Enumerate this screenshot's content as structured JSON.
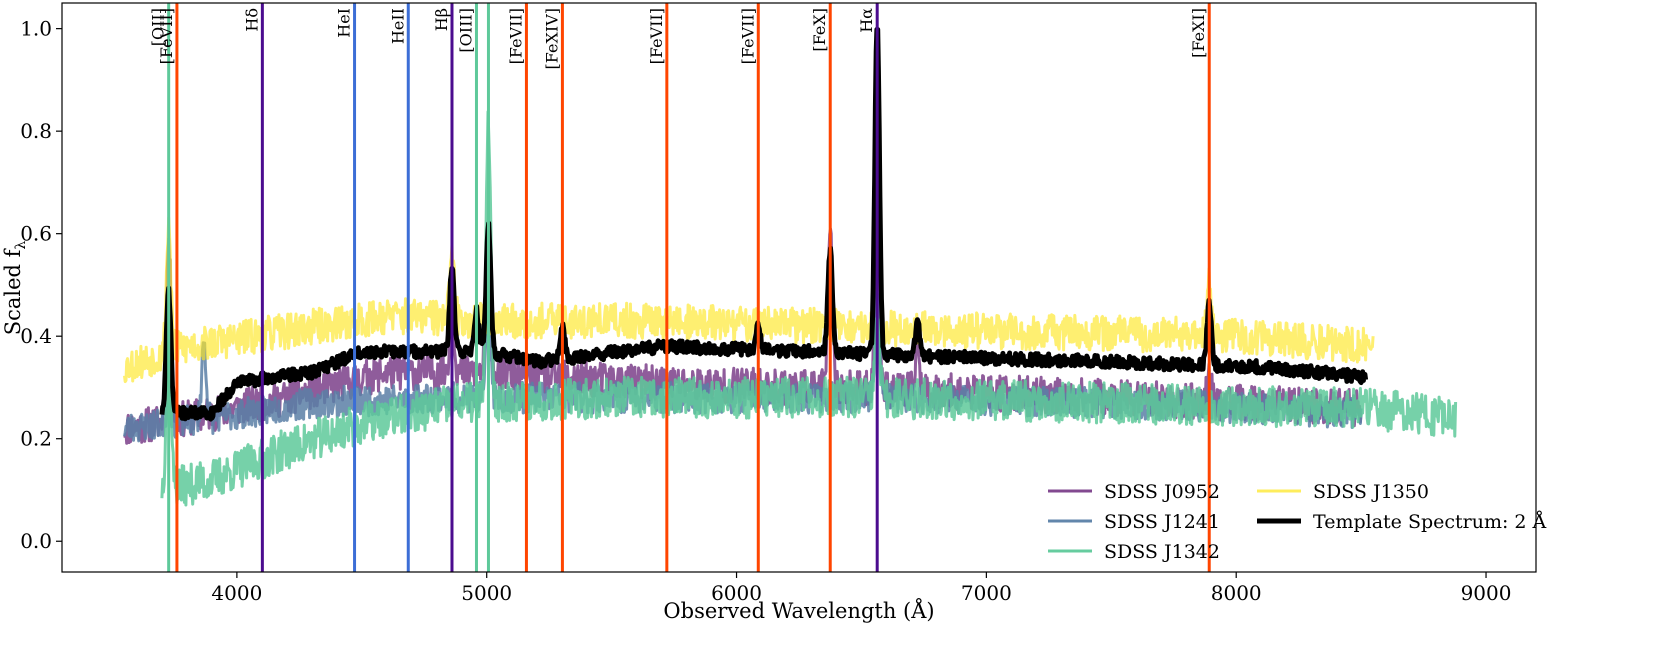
{
  "chart_data": {
    "type": "line",
    "title": "",
    "xlabel": "Observed Wavelength (Å)",
    "ylabel_main": "Scaled f",
    "ylabel_sub": "λ",
    "xlim": [
      3300,
      9200
    ],
    "ylim": [
      -0.06,
      1.05
    ],
    "xticks": [
      4000,
      5000,
      6000,
      7000,
      8000,
      9000
    ],
    "xtick_labels": [
      "4000",
      "5000",
      "6000",
      "7000",
      "8000",
      "9000"
    ],
    "yticks": [
      0.0,
      0.2,
      0.4,
      0.6,
      0.8,
      1.0
    ],
    "ytick_labels": [
      "0.0",
      "0.2",
      "0.4",
      "0.6",
      "0.8",
      "1.0"
    ],
    "legend_position": "lower-right",
    "legend_columns": 2,
    "series": [
      {
        "name": "SDSS J0952",
        "color": "#7b3f8a",
        "opacity": 0.85,
        "width": 3,
        "x_range": [
          3550,
          8500
        ],
        "base": 0.28,
        "noise": 0.035,
        "seed": 11,
        "profile": [
          [
            3550,
            0.22
          ],
          [
            3800,
            0.24
          ],
          [
            4200,
            0.28
          ],
          [
            4600,
            0.33
          ],
          [
            5000,
            0.33
          ],
          [
            5600,
            0.31
          ],
          [
            6300,
            0.3
          ],
          [
            7000,
            0.29
          ],
          [
            8000,
            0.27
          ],
          [
            8500,
            0.26
          ]
        ],
        "peaks": [
          [
            3727,
            0.35
          ],
          [
            4861,
            0.12
          ],
          [
            5007,
            0.25
          ],
          [
            6375,
            0.3
          ],
          [
            6563,
            0.42
          ],
          [
            6725,
            0.08
          ],
          [
            7892,
            0.05
          ]
        ]
      },
      {
        "name": "SDSS J1241",
        "color": "#5a7fa6",
        "opacity": 0.85,
        "width": 3,
        "x_range": [
          3550,
          8500
        ],
        "base": 0.27,
        "noise": 0.03,
        "seed": 23,
        "profile": [
          [
            3550,
            0.22
          ],
          [
            3900,
            0.24
          ],
          [
            4300,
            0.27
          ],
          [
            4800,
            0.28
          ],
          [
            5500,
            0.28
          ],
          [
            6500,
            0.28
          ],
          [
            7500,
            0.27
          ],
          [
            8500,
            0.25
          ]
        ],
        "peaks": [
          [
            3727,
            0.05
          ],
          [
            3868,
            0.15
          ],
          [
            5007,
            0.18
          ],
          [
            6563,
            0.2
          ]
        ]
      },
      {
        "name": "SDSS J1342",
        "color": "#5ec99a",
        "opacity": 0.85,
        "width": 3,
        "x_range": [
          3700,
          8880
        ],
        "base": 0.26,
        "noise": 0.04,
        "seed": 37,
        "profile": [
          [
            3700,
            0.1
          ],
          [
            3900,
            0.12
          ],
          [
            4200,
            0.18
          ],
          [
            4500,
            0.23
          ],
          [
            4900,
            0.27
          ],
          [
            5500,
            0.28
          ],
          [
            6500,
            0.28
          ],
          [
            7500,
            0.27
          ],
          [
            8500,
            0.26
          ],
          [
            8880,
            0.24
          ]
        ],
        "peaks": [
          [
            3727,
            0.35
          ],
          [
            5007,
            0.55
          ],
          [
            6563,
            0.15
          ]
        ]
      },
      {
        "name": "SDSS J1350",
        "color": "#fde725",
        "opacity": 0.65,
        "width": 3,
        "x_range": [
          3550,
          8550
        ],
        "base": 0.4,
        "noise": 0.035,
        "seed": 53,
        "profile": [
          [
            3550,
            0.34
          ],
          [
            3800,
            0.38
          ],
          [
            4200,
            0.41
          ],
          [
            4600,
            0.44
          ],
          [
            5000,
            0.43
          ],
          [
            5600,
            0.43
          ],
          [
            6300,
            0.42
          ],
          [
            7000,
            0.41
          ],
          [
            8000,
            0.4
          ],
          [
            8550,
            0.38
          ]
        ],
        "peaks": [
          [
            3727,
            0.25
          ],
          [
            4861,
            0.12
          ],
          [
            6563,
            0.32
          ],
          [
            7892,
            0.1
          ]
        ]
      },
      {
        "name": "Template Spectrum: 2 Å",
        "color": "#000000",
        "opacity": 1.0,
        "width": 5,
        "x_range": [
          3700,
          8520
        ],
        "base": 0.35,
        "noise": 0.012,
        "seed": 71,
        "profile": [
          [
            3700,
            0.25
          ],
          [
            3900,
            0.25
          ],
          [
            4000,
            0.31
          ],
          [
            4300,
            0.33
          ],
          [
            4500,
            0.37
          ],
          [
            5000,
            0.37
          ],
          [
            5200,
            0.35
          ],
          [
            5700,
            0.38
          ],
          [
            6300,
            0.37
          ],
          [
            6800,
            0.36
          ],
          [
            7500,
            0.35
          ],
          [
            8100,
            0.34
          ],
          [
            8520,
            0.32
          ]
        ],
        "peaks": [
          [
            3727,
            0.24
          ],
          [
            4861,
            0.16
          ],
          [
            4959,
            0.08
          ],
          [
            5007,
            0.25
          ],
          [
            5303,
            0.06
          ],
          [
            6087,
            0.05
          ],
          [
            6375,
            0.2
          ],
          [
            6563,
            0.64
          ],
          [
            6725,
            0.06
          ],
          [
            7892,
            0.12
          ]
        ]
      }
    ],
    "emission_lines": [
      {
        "x": 3727,
        "label": "[OII]",
        "color": "#5ec99a"
      },
      {
        "x": 3760,
        "label": "[FeVII]",
        "color": "#ff4500"
      },
      {
        "x": 4102,
        "label": "Hδ",
        "color": "#4b0c8f"
      },
      {
        "x": 4471,
        "label": "HeI",
        "color": "#3c6ed6"
      },
      {
        "x": 4686,
        "label": "HeII",
        "color": "#3c6ed6"
      },
      {
        "x": 4861,
        "label": "Hβ",
        "color": "#4b0c8f"
      },
      {
        "x": 4959,
        "label": "[OIII]",
        "color": "#5ec99a"
      },
      {
        "x": 5007,
        "label": "",
        "color": "#5ec99a"
      },
      {
        "x": 5159,
        "label": "[FeVII]",
        "color": "#ff4500"
      },
      {
        "x": 5303,
        "label": "[FeXIV]",
        "color": "#ff4500"
      },
      {
        "x": 5721,
        "label": "[FeVII]",
        "color": "#ff4500"
      },
      {
        "x": 6087,
        "label": "[FeVII]",
        "color": "#ff4500"
      },
      {
        "x": 6375,
        "label": "[FeX]",
        "color": "#ff4500"
      },
      {
        "x": 6563,
        "label": "Hα",
        "color": "#4b0c8f"
      },
      {
        "x": 7892,
        "label": "[FeXI]",
        "color": "#ff4500"
      }
    ]
  }
}
